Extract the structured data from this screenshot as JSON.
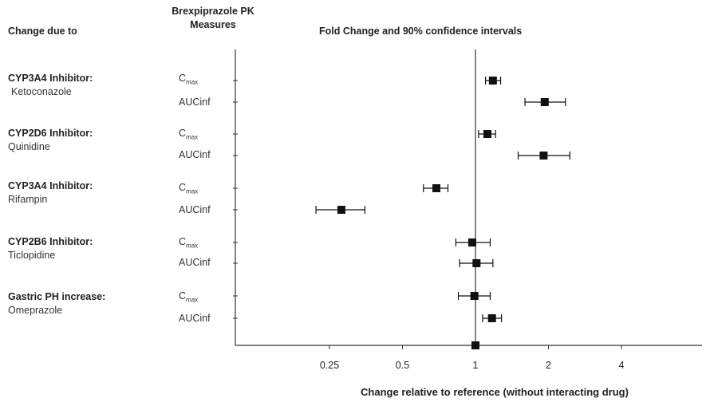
{
  "headers": {
    "change_due_to": "Change due to",
    "pk_line1": "Brexpiprazole PK",
    "pk_line2": "Measures",
    "fold_change": "Fold Change and 90% confidence intervals"
  },
  "groups": [
    {
      "name": "CYP3A4 Inhibitor:",
      "agent": "Ketoconazole"
    },
    {
      "name": "CYP2D6 Inhibitor:",
      "agent": "Quinidine"
    },
    {
      "name": "CYP3A4 Inhibitor:",
      "agent": "Rifampin"
    },
    {
      "name": "CYP2B6 Inhibitor:",
      "agent": "Ticlopidine"
    },
    {
      "name": "Gastric PH increase:",
      "agent": "Omeprazole"
    }
  ],
  "measure_labels": {
    "cmax": "C",
    "cmax_sub": "max",
    "auc": "AUCinf"
  },
  "colors": {
    "marker": "#111111",
    "axis": "#333333",
    "text": "#222222"
  },
  "chart_data": {
    "type": "scatter",
    "subtype": "forest plot",
    "x_scale": "log2",
    "xlim": [
      0.125,
      8
    ],
    "xticks": [
      0.25,
      0.5,
      1,
      2,
      4
    ],
    "xtick_labels": [
      "0.25",
      "0.5",
      "1",
      "2",
      "4"
    ],
    "xlabel": "Change relative to reference (without interacting drug)",
    "reference_line": 1,
    "reference_point_label": "1",
    "rows": [
      {
        "group": 0,
        "measure": "Cmax",
        "estimate": 1.18,
        "ci": [
          1.1,
          1.27
        ]
      },
      {
        "group": 0,
        "measure": "AUCinf",
        "estimate": 1.93,
        "ci": [
          1.6,
          2.35
        ]
      },
      {
        "group": 1,
        "measure": "Cmax",
        "estimate": 1.12,
        "ci": [
          1.03,
          1.21
        ]
      },
      {
        "group": 1,
        "measure": "AUCinf",
        "estimate": 1.91,
        "ci": [
          1.5,
          2.45
        ]
      },
      {
        "group": 2,
        "measure": "Cmax",
        "estimate": 0.69,
        "ci": [
          0.61,
          0.77
        ]
      },
      {
        "group": 2,
        "measure": "AUCinf",
        "estimate": 0.28,
        "ci": [
          0.22,
          0.35
        ]
      },
      {
        "group": 3,
        "measure": "Cmax",
        "estimate": 0.97,
        "ci": [
          0.83,
          1.15
        ]
      },
      {
        "group": 3,
        "measure": "AUCinf",
        "estimate": 1.01,
        "ci": [
          0.86,
          1.18
        ]
      },
      {
        "group": 4,
        "measure": "Cmax",
        "estimate": 0.99,
        "ci": [
          0.85,
          1.15
        ]
      },
      {
        "group": 4,
        "measure": "AUCinf",
        "estimate": 1.17,
        "ci": [
          1.07,
          1.28
        ]
      }
    ]
  }
}
